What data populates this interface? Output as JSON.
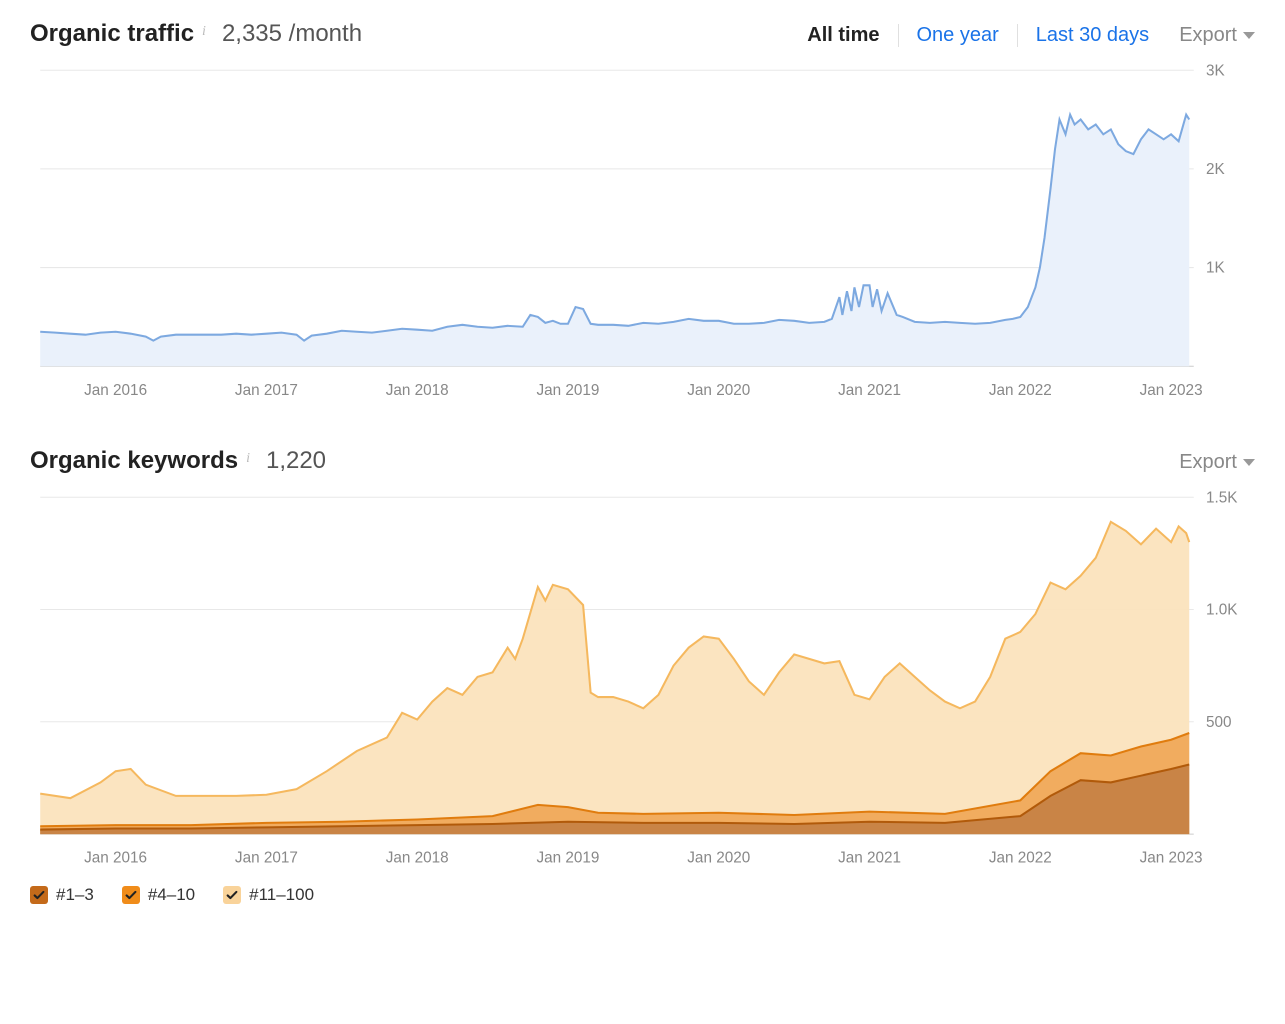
{
  "traffic_panel": {
    "title": "Organic traffic",
    "metric": "2,335 /month",
    "range_tabs": [
      "All time",
      "One year",
      "Last 30 days"
    ],
    "active_range": "All time",
    "export_label": "Export",
    "chart": {
      "type": "area",
      "line_color": "#7da9e0",
      "fill_color": "#eaf1fb",
      "line_width": 2,
      "grid_color": "#e8e8e8",
      "background_color": "#ffffff",
      "ylim": [
        0,
        3000
      ],
      "yticks": [
        {
          "v": 1000,
          "l": "1K"
        },
        {
          "v": 2000,
          "l": "2K"
        },
        {
          "v": 3000,
          "l": "3K"
        }
      ],
      "x_labels": [
        "Jan 2016",
        "Jan 2017",
        "Jan 2018",
        "Jan 2019",
        "Jan 2020",
        "Jan 2021",
        "Jan 2022",
        "Jan 2023"
      ],
      "x_start": 2015.5,
      "x_end": 2023.15,
      "series": [
        [
          2015.5,
          350
        ],
        [
          2015.6,
          340
        ],
        [
          2015.7,
          330
        ],
        [
          2015.8,
          320
        ],
        [
          2015.9,
          340
        ],
        [
          2016.0,
          350
        ],
        [
          2016.1,
          330
        ],
        [
          2016.2,
          300
        ],
        [
          2016.25,
          260
        ],
        [
          2016.3,
          300
        ],
        [
          2016.4,
          320
        ],
        [
          2016.5,
          320
        ],
        [
          2016.6,
          320
        ],
        [
          2016.7,
          320
        ],
        [
          2016.8,
          330
        ],
        [
          2016.9,
          320
        ],
        [
          2017.0,
          330
        ],
        [
          2017.1,
          340
        ],
        [
          2017.2,
          320
        ],
        [
          2017.25,
          260
        ],
        [
          2017.3,
          310
        ],
        [
          2017.4,
          330
        ],
        [
          2017.5,
          360
        ],
        [
          2017.6,
          350
        ],
        [
          2017.7,
          340
        ],
        [
          2017.8,
          360
        ],
        [
          2017.9,
          380
        ],
        [
          2018.0,
          370
        ],
        [
          2018.1,
          360
        ],
        [
          2018.2,
          400
        ],
        [
          2018.3,
          420
        ],
        [
          2018.4,
          400
        ],
        [
          2018.5,
          390
        ],
        [
          2018.6,
          410
        ],
        [
          2018.7,
          400
        ],
        [
          2018.75,
          520
        ],
        [
          2018.8,
          500
        ],
        [
          2018.85,
          440
        ],
        [
          2018.9,
          460
        ],
        [
          2018.95,
          430
        ],
        [
          2019.0,
          430
        ],
        [
          2019.05,
          600
        ],
        [
          2019.1,
          580
        ],
        [
          2019.15,
          430
        ],
        [
          2019.2,
          420
        ],
        [
          2019.3,
          420
        ],
        [
          2019.4,
          410
        ],
        [
          2019.5,
          440
        ],
        [
          2019.6,
          430
        ],
        [
          2019.7,
          450
        ],
        [
          2019.8,
          480
        ],
        [
          2019.9,
          460
        ],
        [
          2020.0,
          460
        ],
        [
          2020.1,
          430
        ],
        [
          2020.2,
          430
        ],
        [
          2020.3,
          440
        ],
        [
          2020.4,
          470
        ],
        [
          2020.5,
          460
        ],
        [
          2020.6,
          440
        ],
        [
          2020.7,
          450
        ],
        [
          2020.75,
          480
        ],
        [
          2020.8,
          700
        ],
        [
          2020.82,
          520
        ],
        [
          2020.85,
          760
        ],
        [
          2020.88,
          560
        ],
        [
          2020.9,
          800
        ],
        [
          2020.93,
          600
        ],
        [
          2020.96,
          820
        ],
        [
          2021.0,
          820
        ],
        [
          2021.02,
          600
        ],
        [
          2021.05,
          780
        ],
        [
          2021.08,
          560
        ],
        [
          2021.12,
          740
        ],
        [
          2021.18,
          520
        ],
        [
          2021.22,
          500
        ],
        [
          2021.3,
          450
        ],
        [
          2021.4,
          440
        ],
        [
          2021.5,
          450
        ],
        [
          2021.6,
          440
        ],
        [
          2021.7,
          430
        ],
        [
          2021.8,
          440
        ],
        [
          2021.9,
          470
        ],
        [
          2021.95,
          480
        ],
        [
          2022.0,
          500
        ],
        [
          2022.05,
          600
        ],
        [
          2022.1,
          800
        ],
        [
          2022.13,
          1000
        ],
        [
          2022.16,
          1300
        ],
        [
          2022.2,
          1800
        ],
        [
          2022.23,
          2200
        ],
        [
          2022.26,
          2500
        ],
        [
          2022.3,
          2350
        ],
        [
          2022.33,
          2550
        ],
        [
          2022.36,
          2450
        ],
        [
          2022.4,
          2500
        ],
        [
          2022.45,
          2400
        ],
        [
          2022.5,
          2450
        ],
        [
          2022.55,
          2350
        ],
        [
          2022.6,
          2400
        ],
        [
          2022.65,
          2250
        ],
        [
          2022.7,
          2180
        ],
        [
          2022.75,
          2150
        ],
        [
          2022.8,
          2300
        ],
        [
          2022.85,
          2400
        ],
        [
          2022.9,
          2350
        ],
        [
          2022.95,
          2300
        ],
        [
          2023.0,
          2350
        ],
        [
          2023.05,
          2280
        ],
        [
          2023.1,
          2550
        ],
        [
          2023.12,
          2500
        ]
      ]
    }
  },
  "keywords_panel": {
    "title": "Organic keywords",
    "metric": "1,220",
    "export_label": "Export",
    "chart": {
      "type": "stacked-area",
      "grid_color": "#e8e8e8",
      "background_color": "#ffffff",
      "ylim": [
        0,
        1500
      ],
      "yticks": [
        {
          "v": 500,
          "l": "500"
        },
        {
          "v": 1000,
          "l": "1.0K"
        },
        {
          "v": 1500,
          "l": "1.5K"
        }
      ],
      "x_labels": [
        "Jan 2016",
        "Jan 2017",
        "Jan 2018",
        "Jan 2019",
        "Jan 2020",
        "Jan 2021",
        "Jan 2022",
        "Jan 2023"
      ],
      "x_start": 2015.5,
      "x_end": 2023.15,
      "line_width": 2,
      "series": {
        "rank_1_3": {
          "label": "#1–3",
          "line_color": "#b15a0a",
          "fill_color": "#c68244",
          "swatch_color": "#c46a1a",
          "data": [
            [
              2015.5,
              20
            ],
            [
              2016.0,
              25
            ],
            [
              2016.5,
              25
            ],
            [
              2017.0,
              30
            ],
            [
              2017.5,
              35
            ],
            [
              2018.0,
              40
            ],
            [
              2018.5,
              45
            ],
            [
              2019.0,
              55
            ],
            [
              2019.5,
              50
            ],
            [
              2020.0,
              50
            ],
            [
              2020.5,
              45
            ],
            [
              2021.0,
              55
            ],
            [
              2021.5,
              50
            ],
            [
              2022.0,
              80
            ],
            [
              2022.2,
              170
            ],
            [
              2022.4,
              240
            ],
            [
              2022.6,
              230
            ],
            [
              2022.8,
              260
            ],
            [
              2023.0,
              290
            ],
            [
              2023.12,
              310
            ]
          ]
        },
        "rank_4_10": {
          "label": "#4–10",
          "line_color": "#e07c0e",
          "fill_color": "#f0a95a",
          "swatch_color": "#f08c1a",
          "data": [
            [
              2015.5,
              35
            ],
            [
              2016.0,
              40
            ],
            [
              2016.5,
              40
            ],
            [
              2017.0,
              50
            ],
            [
              2017.5,
              55
            ],
            [
              2018.0,
              65
            ],
            [
              2018.5,
              80
            ],
            [
              2018.8,
              130
            ],
            [
              2019.0,
              120
            ],
            [
              2019.2,
              95
            ],
            [
              2019.5,
              90
            ],
            [
              2020.0,
              95
            ],
            [
              2020.5,
              85
            ],
            [
              2021.0,
              100
            ],
            [
              2021.5,
              90
            ],
            [
              2022.0,
              150
            ],
            [
              2022.2,
              280
            ],
            [
              2022.4,
              360
            ],
            [
              2022.6,
              350
            ],
            [
              2022.8,
              390
            ],
            [
              2023.0,
              420
            ],
            [
              2023.12,
              450
            ]
          ]
        },
        "rank_11_100": {
          "label": "#11–100",
          "line_color": "#f5b85e",
          "fill_color": "#fbe3bd",
          "swatch_color": "#f9d39a",
          "data": [
            [
              2015.5,
              180
            ],
            [
              2015.7,
              160
            ],
            [
              2015.9,
              230
            ],
            [
              2016.0,
              280
            ],
            [
              2016.1,
              290
            ],
            [
              2016.2,
              220
            ],
            [
              2016.4,
              170
            ],
            [
              2016.6,
              170
            ],
            [
              2016.8,
              170
            ],
            [
              2017.0,
              175
            ],
            [
              2017.2,
              200
            ],
            [
              2017.4,
              280
            ],
            [
              2017.6,
              370
            ],
            [
              2017.8,
              430
            ],
            [
              2017.9,
              540
            ],
            [
              2018.0,
              510
            ],
            [
              2018.1,
              590
            ],
            [
              2018.2,
              650
            ],
            [
              2018.3,
              620
            ],
            [
              2018.4,
              700
            ],
            [
              2018.5,
              720
            ],
            [
              2018.6,
              830
            ],
            [
              2018.65,
              780
            ],
            [
              2018.7,
              870
            ],
            [
              2018.8,
              1100
            ],
            [
              2018.85,
              1040
            ],
            [
              2018.9,
              1110
            ],
            [
              2019.0,
              1090
            ],
            [
              2019.1,
              1020
            ],
            [
              2019.15,
              630
            ],
            [
              2019.2,
              610
            ],
            [
              2019.3,
              610
            ],
            [
              2019.4,
              590
            ],
            [
              2019.5,
              560
            ],
            [
              2019.6,
              620
            ],
            [
              2019.7,
              750
            ],
            [
              2019.8,
              830
            ],
            [
              2019.9,
              880
            ],
            [
              2020.0,
              870
            ],
            [
              2020.1,
              780
            ],
            [
              2020.2,
              680
            ],
            [
              2020.3,
              620
            ],
            [
              2020.4,
              720
            ],
            [
              2020.5,
              800
            ],
            [
              2020.6,
              780
            ],
            [
              2020.7,
              760
            ],
            [
              2020.8,
              770
            ],
            [
              2020.9,
              620
            ],
            [
              2021.0,
              600
            ],
            [
              2021.1,
              700
            ],
            [
              2021.2,
              760
            ],
            [
              2021.3,
              700
            ],
            [
              2021.4,
              640
            ],
            [
              2021.5,
              590
            ],
            [
              2021.6,
              560
            ],
            [
              2021.7,
              590
            ],
            [
              2021.8,
              700
            ],
            [
              2021.9,
              870
            ],
            [
              2022.0,
              900
            ],
            [
              2022.1,
              980
            ],
            [
              2022.2,
              1120
            ],
            [
              2022.3,
              1090
            ],
            [
              2022.4,
              1150
            ],
            [
              2022.5,
              1230
            ],
            [
              2022.6,
              1390
            ],
            [
              2022.7,
              1350
            ],
            [
              2022.8,
              1290
            ],
            [
              2022.9,
              1360
            ],
            [
              2023.0,
              1300
            ],
            [
              2023.05,
              1370
            ],
            [
              2023.1,
              1340
            ],
            [
              2023.12,
              1300
            ]
          ]
        }
      }
    }
  }
}
